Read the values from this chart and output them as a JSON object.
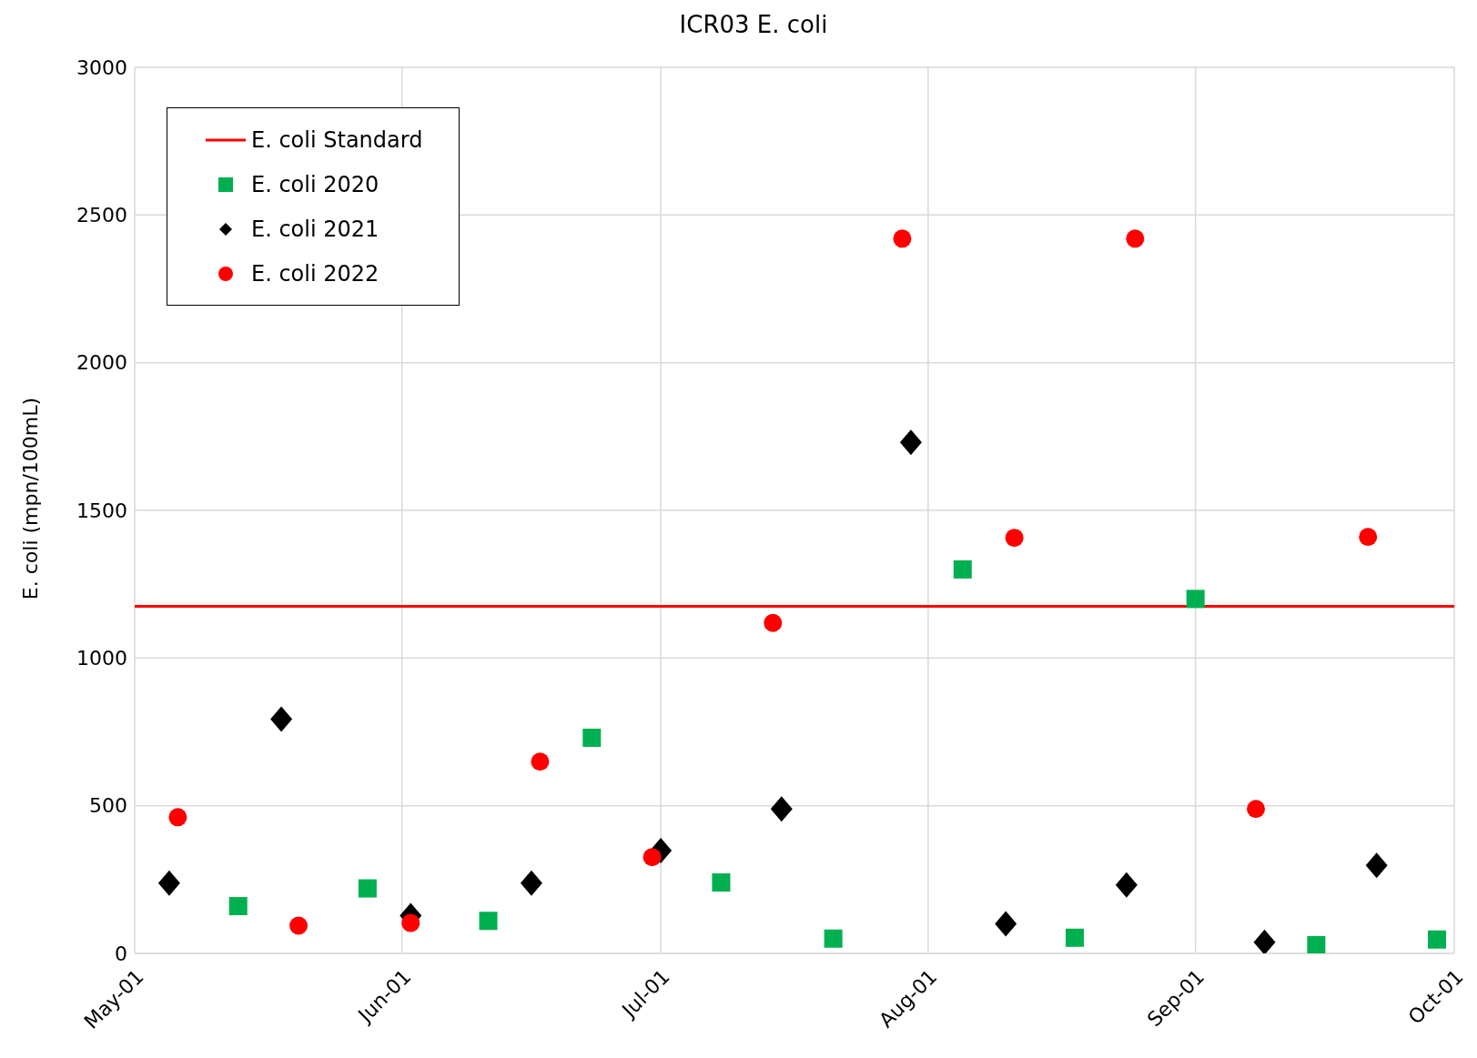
{
  "chart_data": {
    "type": "scatter",
    "title": "ICR03 E. coli",
    "ylabel": "E. coli (mpn/100mL)",
    "xlim": [
      "--05-01",
      "--10-01"
    ],
    "xticks": [
      {
        "value": "--05-01",
        "label": "May-01"
      },
      {
        "value": "--06-01",
        "label": "Jun-01"
      },
      {
        "value": "--07-01",
        "label": "Jul-01"
      },
      {
        "value": "--08-01",
        "label": "Aug-01"
      },
      {
        "value": "--09-01",
        "label": "Sep-01"
      },
      {
        "value": "--10-01",
        "label": "Oct-01"
      }
    ],
    "ylim": [
      0,
      3000
    ],
    "yticks": [
      0,
      500,
      1000,
      1500,
      2000,
      2500,
      3000
    ],
    "grid": true,
    "legend": "top left",
    "series": [
      {
        "name": "E. coli Standard",
        "type": "line",
        "color": "#ff0000",
        "line_style": "solid",
        "x": [
          "--05-01",
          "--10-01"
        ],
        "values": [
          1175,
          1175
        ]
      },
      {
        "name": "E. coli 2020",
        "color": "#00b050",
        "marker": "square",
        "x": [
          "--05-13",
          "--05-28",
          "--06-11",
          "--06-23",
          "--07-08",
          "--07-21",
          "--08-05",
          "--08-18",
          "--09-01",
          "--09-15",
          "--09-29"
        ],
        "values": [
          160,
          220,
          110,
          730,
          240,
          50,
          1300,
          53,
          1200,
          28,
          47
        ]
      },
      {
        "name": "E. coli 2021",
        "color": "#000000",
        "marker": "diamond",
        "x": [
          "--05-05",
          "--05-18",
          "--06-02",
          "--06-16",
          "--07-01",
          "--07-15",
          "--07-30",
          "--08-10",
          "--08-24",
          "--09-09",
          "--09-22"
        ],
        "values": [
          238,
          793,
          128,
          238,
          348,
          489,
          1730,
          100,
          232,
          38,
          298
        ]
      },
      {
        "name": "E. coli 2022",
        "color": "#ff0000",
        "marker": "circle",
        "x": [
          "--05-06",
          "--05-20",
          "--06-02",
          "--06-17",
          "--06-30",
          "--07-14",
          "--07-29",
          "--08-11",
          "--08-25",
          "--09-08",
          "--09-21"
        ],
        "values": [
          461,
          94,
          103,
          649,
          326,
          1119,
          2420,
          1407,
          2420,
          489,
          1410
        ]
      }
    ]
  }
}
